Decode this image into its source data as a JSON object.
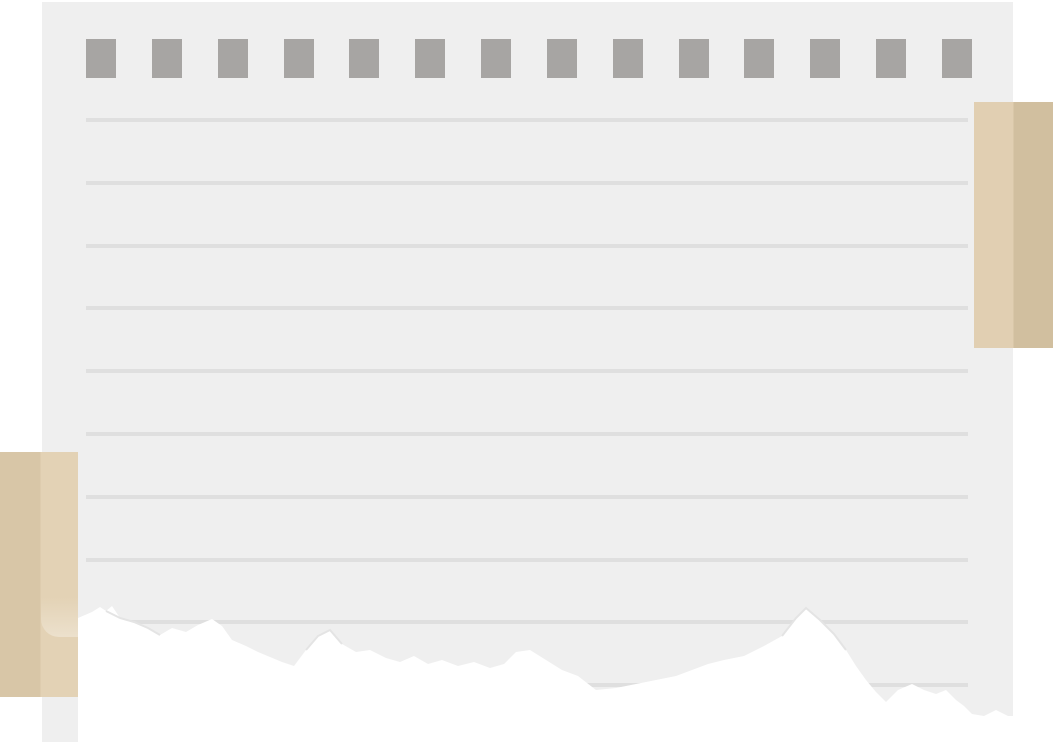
{
  "notebook_page": {
    "binding_hole_count": 14,
    "ruled_line_count": 10
  },
  "colors": {
    "paper": "#efefef",
    "holes": "#a7a5a3",
    "ruled_lines": "#dfdfdf",
    "tape_light": "#e1cfb2",
    "tape_dark": "#d1bf9f",
    "background": "#ffffff"
  }
}
